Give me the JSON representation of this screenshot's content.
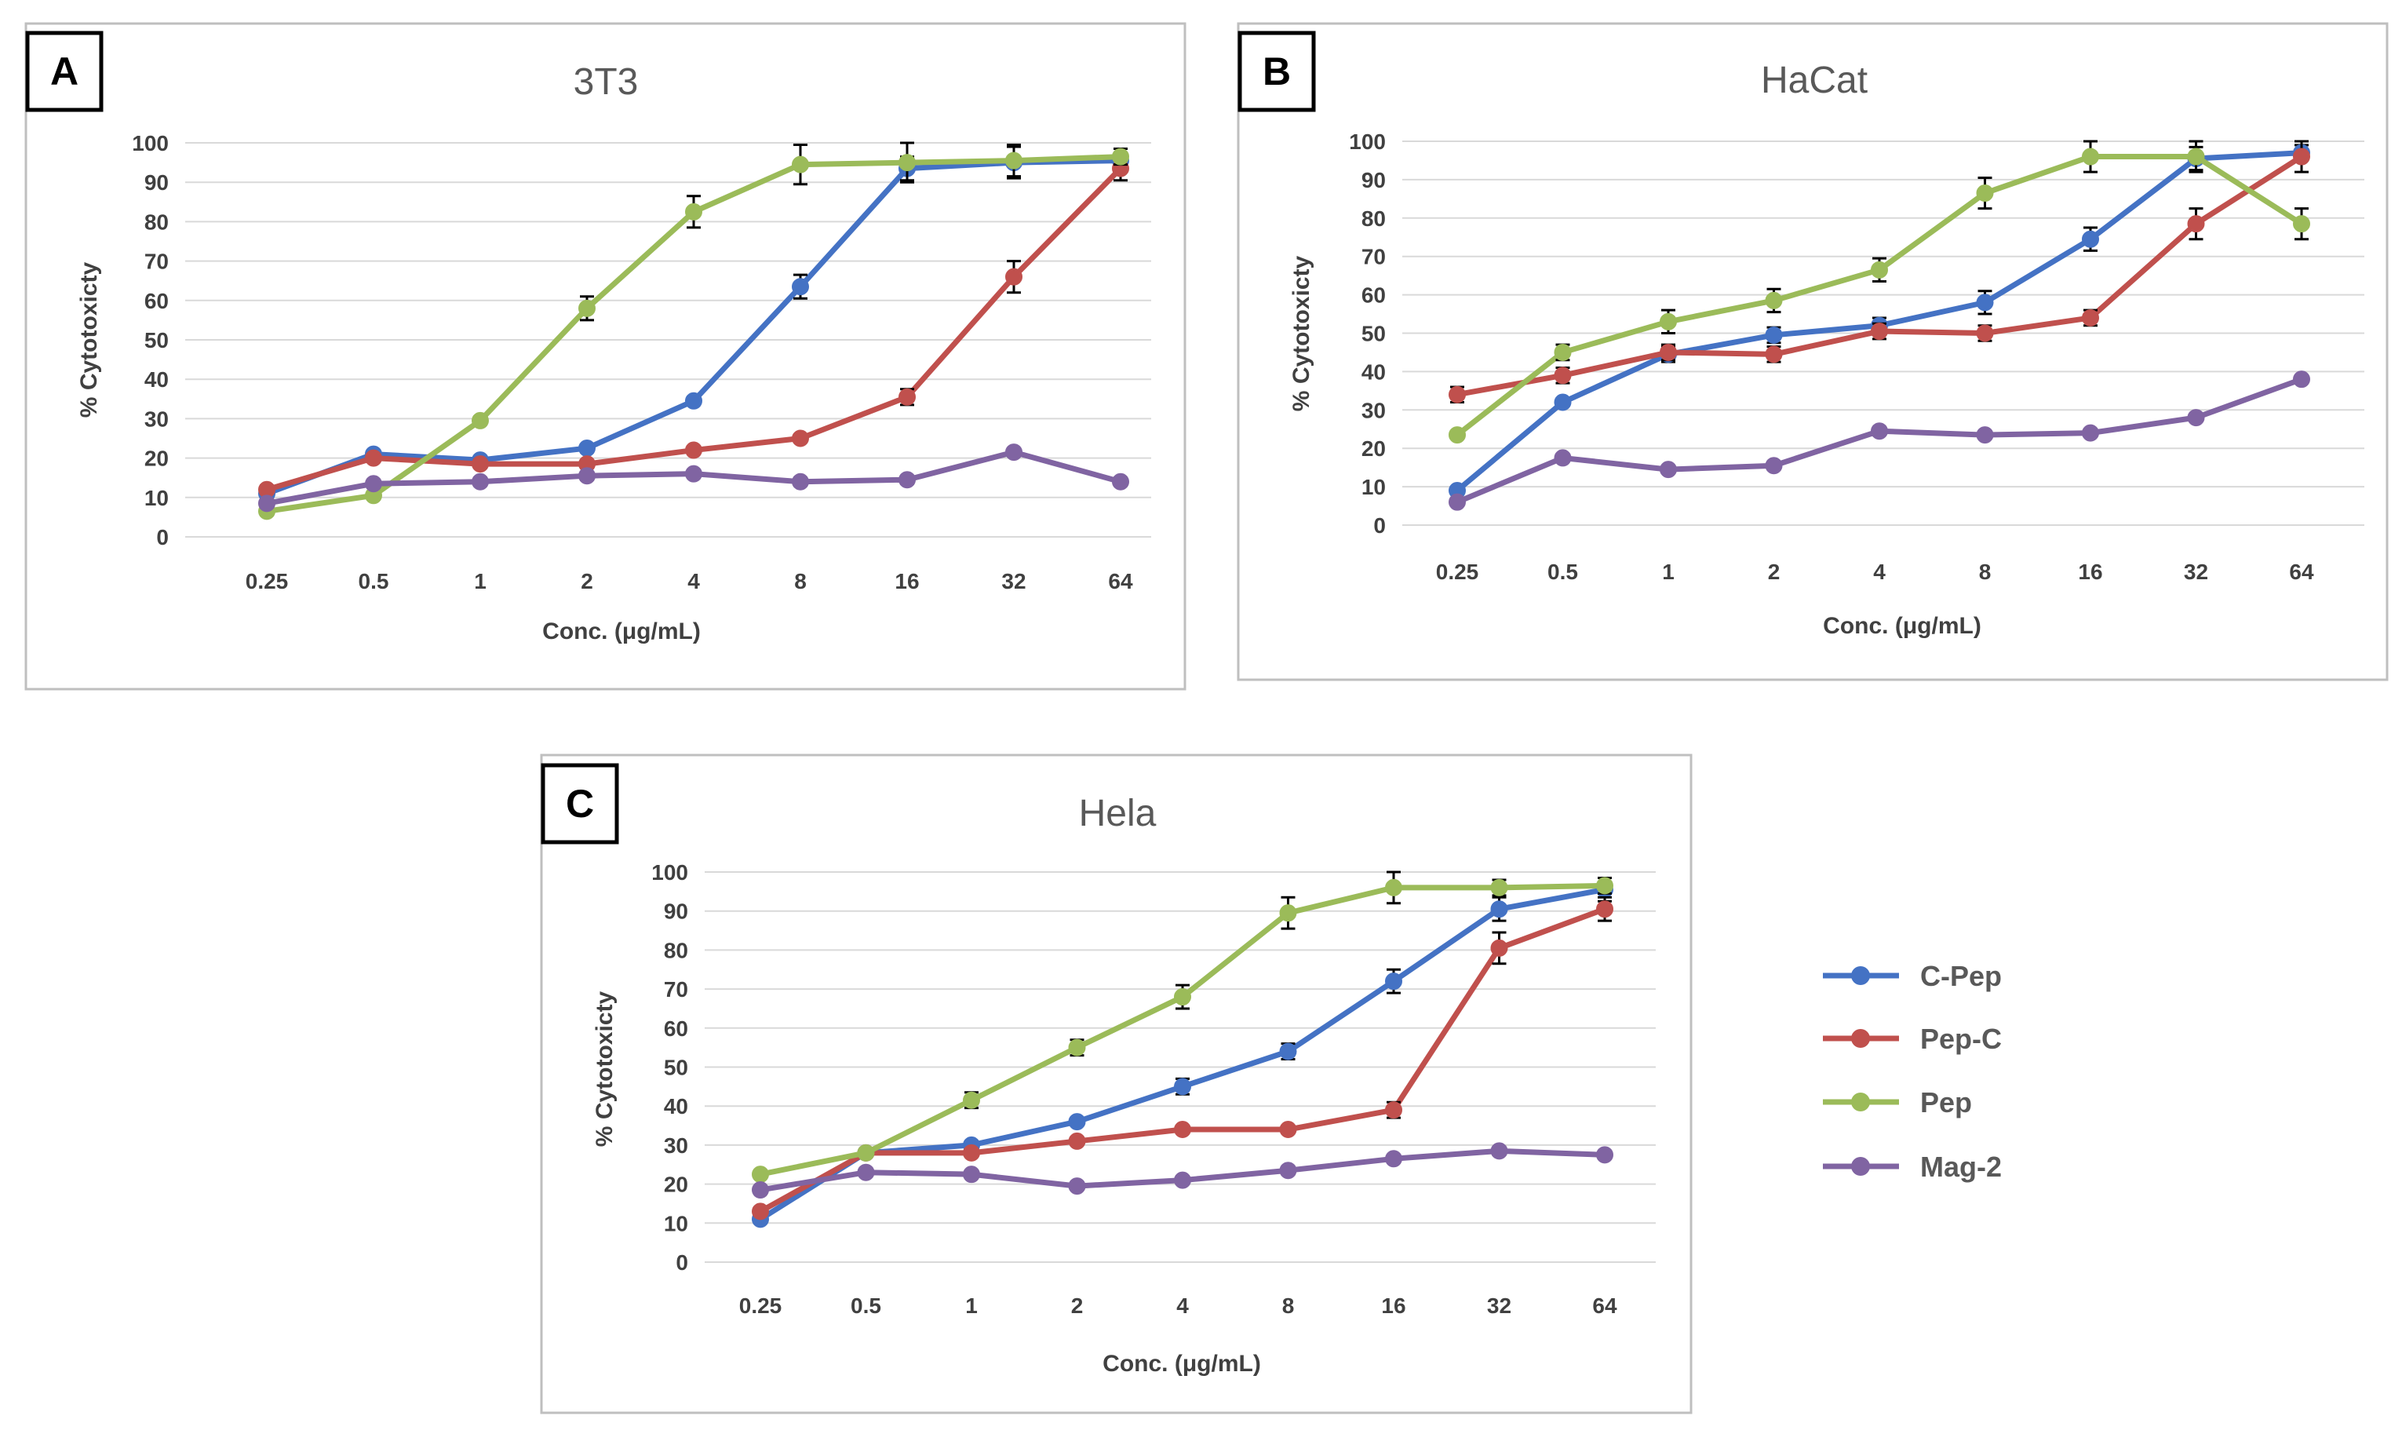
{
  "legend": [
    "C-Pep",
    "Pep-C",
    "Pep",
    "Mag-2"
  ],
  "colors": {
    "C-Pep": "#4472C4",
    "Pep-C": "#C0504D",
    "Pep": "#9BBB59",
    "Mag-2": "#8064A2",
    "grid": "#d9d9d9",
    "frame": "#bfbfbf",
    "text": "#404040"
  },
  "chart_data": [
    {
      "panel": "A",
      "type": "line",
      "title": "3T3",
      "xlabel": "Conc. (μg/mL)",
      "ylabel": "% Cytotoxicty",
      "ylim": [
        0,
        100
      ],
      "yticks": [
        "0",
        "10",
        "20",
        "30",
        "40",
        "50",
        "60",
        "70",
        "80",
        "90",
        "100"
      ],
      "categories": [
        "0.25",
        "0.5",
        "1",
        "2",
        "4",
        "8",
        "16",
        "32",
        "64"
      ],
      "grid": true,
      "series": [
        {
          "name": "C-Pep",
          "values": [
            11,
            21,
            19.5,
            22.5,
            34.5,
            63.5,
            93.5,
            95,
            95.5
          ],
          "errors": [
            1,
            1,
            1,
            1,
            1,
            3,
            3,
            4,
            2
          ]
        },
        {
          "name": "Pep-C",
          "values": [
            12,
            20,
            18.5,
            18.5,
            22,
            25,
            35.5,
            66,
            93.5
          ],
          "errors": [
            1,
            1,
            1,
            1,
            1,
            1,
            2,
            4,
            3
          ]
        },
        {
          "name": "Pep",
          "values": [
            6.5,
            10.5,
            29.5,
            58,
            82.5,
            94.5,
            95,
            95.5,
            96.5
          ],
          "errors": [
            1,
            1,
            1,
            3,
            4,
            5,
            5,
            4,
            2
          ]
        },
        {
          "name": "Mag-2",
          "values": [
            8.5,
            13.5,
            14,
            15.5,
            16,
            14,
            14.5,
            21.5,
            14
          ],
          "errors": [
            1,
            1,
            1,
            1,
            1,
            1,
            1,
            1,
            1
          ]
        }
      ]
    },
    {
      "panel": "B",
      "type": "line",
      "title": "HaCat",
      "xlabel": "Conc. (μg/mL)",
      "ylabel": "% Cytotoxicty",
      "ylim": [
        0,
        100
      ],
      "yticks": [
        "0",
        "10",
        "20",
        "30",
        "40",
        "50",
        "60",
        "70",
        "80",
        "90",
        "100"
      ],
      "categories": [
        "0.25",
        "0.5",
        "1",
        "2",
        "4",
        "8",
        "16",
        "32",
        "64"
      ],
      "grid": true,
      "series": [
        {
          "name": "C-Pep",
          "values": [
            9,
            32,
            44.5,
            49.5,
            52,
            58,
            74.5,
            95.5,
            97
          ],
          "errors": [
            1,
            1,
            2,
            2,
            2,
            3,
            3,
            3,
            2
          ]
        },
        {
          "name": "Pep-C",
          "values": [
            34,
            39,
            45,
            44.5,
            50.5,
            50,
            54,
            78.5,
            96
          ],
          "errors": [
            2,
            2,
            2,
            2,
            2,
            2,
            2,
            4,
            4
          ]
        },
        {
          "name": "Pep",
          "values": [
            23.5,
            45,
            53,
            58.5,
            66.5,
            86.5,
            96,
            96,
            78.5
          ],
          "errors": [
            1,
            2,
            3,
            3,
            3,
            4,
            4,
            4,
            4
          ]
        },
        {
          "name": "Mag-2",
          "values": [
            6,
            17.5,
            14.5,
            15.5,
            24.5,
            23.5,
            24,
            28,
            38
          ],
          "errors": [
            1,
            1,
            1,
            1,
            1,
            1,
            1,
            1,
            1
          ]
        }
      ]
    },
    {
      "panel": "C",
      "type": "line",
      "title": "Hela",
      "xlabel": "Conc. (μg/mL)",
      "ylabel": "% Cytotoxicty",
      "ylim": [
        0,
        100
      ],
      "yticks": [
        "0",
        "10",
        "20",
        "30",
        "40",
        "50",
        "60",
        "70",
        "80",
        "90",
        "100"
      ],
      "categories": [
        "0.25",
        "0.5",
        "1",
        "2",
        "4",
        "8",
        "16",
        "32",
        "64"
      ],
      "grid": true,
      "series": [
        {
          "name": "C-Pep",
          "values": [
            11,
            28,
            30,
            36,
            45,
            54,
            72,
            90.5,
            95.5
          ],
          "errors": [
            1,
            1,
            1,
            1,
            2,
            2,
            3,
            3,
            3
          ]
        },
        {
          "name": "Pep-C",
          "values": [
            13,
            28,
            28,
            31,
            34,
            34,
            39,
            80.5,
            90.5
          ],
          "errors": [
            1,
            1,
            1,
            1,
            1,
            1,
            2,
            4,
            3
          ]
        },
        {
          "name": "Pep",
          "values": [
            22.5,
            28,
            41.5,
            55,
            68,
            89.5,
            96,
            96,
            96.5
          ],
          "errors": [
            1,
            1,
            2,
            2,
            3,
            4,
            4,
            2,
            2
          ]
        },
        {
          "name": "Mag-2",
          "values": [
            18.5,
            23,
            22.5,
            19.5,
            21,
            23.5,
            26.5,
            28.5,
            27.5
          ],
          "errors": [
            1,
            1,
            1,
            1,
            1,
            1,
            1,
            1,
            1
          ]
        }
      ]
    }
  ]
}
